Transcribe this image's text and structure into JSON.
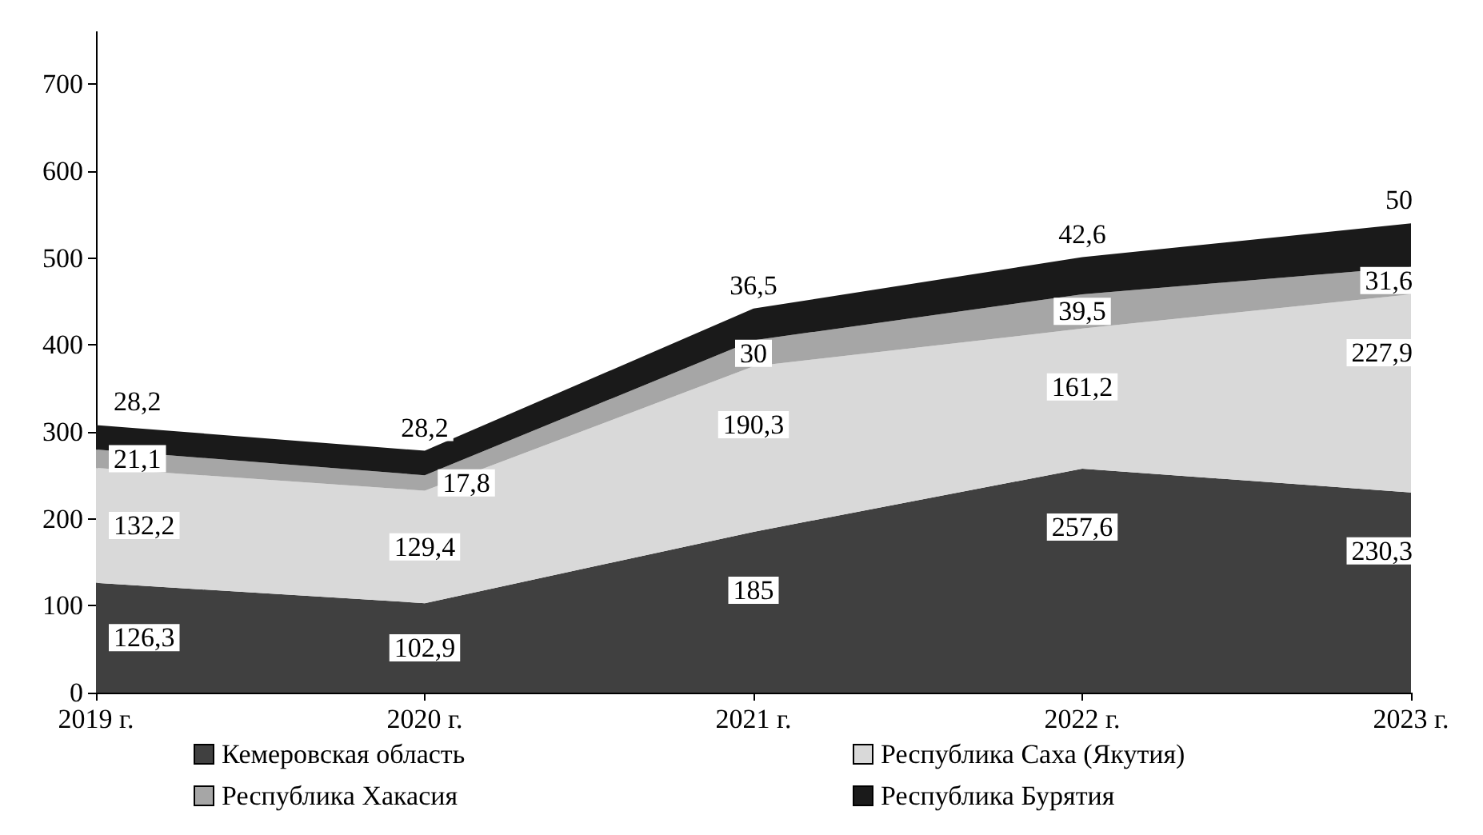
{
  "chart_data": {
    "type": "area",
    "stacked": true,
    "categories": [
      "2019 г.",
      "2020 г.",
      "2021 г.",
      "2022 г.",
      "2023 г."
    ],
    "series": [
      {
        "name": "Кемеровская область",
        "color": "#404040",
        "values": [
          126.3,
          102.9,
          185,
          257.6,
          230.3
        ],
        "value_labels": [
          "126,3",
          "102,9",
          "185",
          "257,6",
          "230,3"
        ]
      },
      {
        "name": "Республика Саха (Якутия)",
        "color": "#d9d9d9",
        "values": [
          132.2,
          129.4,
          190.3,
          161.2,
          227.9
        ],
        "value_labels": [
          "132,2",
          "129,4",
          "190,3",
          "161,2",
          "227,9"
        ]
      },
      {
        "name": "Республика Хакасия",
        "color": "#a6a6a6",
        "values": [
          21.1,
          17.8,
          30,
          39.5,
          31.6
        ],
        "value_labels": [
          "21,1",
          "17,8",
          "30",
          "39,5",
          "31,6"
        ]
      },
      {
        "name": "Республика Бурятия",
        "color": "#1a1a1a",
        "values": [
          28.2,
          28.2,
          36.5,
          42.6,
          50
        ],
        "value_labels": [
          "28,2",
          "28,2",
          "36,5",
          "42,6",
          "50"
        ]
      }
    ],
    "ylim": [
      0,
      760
    ],
    "yticks": [
      0,
      100,
      200,
      300,
      400,
      500,
      600,
      700
    ],
    "grid": false,
    "legend": "bottom"
  }
}
